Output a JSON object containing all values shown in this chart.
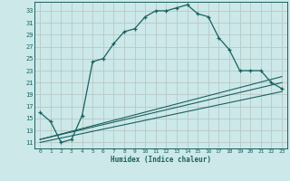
{
  "title": "",
  "xlabel": "Humidex (Indice chaleur)",
  "bg_color": "#cce8e8",
  "grid_color": "#b8c8c8",
  "line_color": "#1a6060",
  "xlim": [
    -0.5,
    23.5
  ],
  "ylim": [
    10,
    34.5
  ],
  "yticks": [
    11,
    13,
    15,
    17,
    19,
    21,
    23,
    25,
    27,
    29,
    31,
    33
  ],
  "xticks": [
    0,
    1,
    2,
    3,
    4,
    5,
    6,
    7,
    8,
    9,
    10,
    11,
    12,
    13,
    14,
    15,
    16,
    17,
    18,
    19,
    20,
    21,
    22,
    23
  ],
  "main_x": [
    0,
    1,
    2,
    3,
    4,
    5,
    6,
    7,
    8,
    9,
    10,
    11,
    12,
    13,
    14,
    15,
    16,
    17,
    18,
    19,
    20,
    21,
    22,
    23
  ],
  "main_y": [
    16.0,
    14.5,
    11.0,
    11.5,
    15.5,
    24.5,
    25.0,
    27.5,
    29.5,
    30.0,
    32.0,
    33.0,
    33.0,
    33.5,
    34.0,
    32.5,
    32.0,
    28.5,
    26.5,
    23.0,
    23.0,
    23.0,
    21.0,
    20.0
  ],
  "line1_x": [
    0,
    23
  ],
  "line1_y": [
    11.5,
    22.0
  ],
  "line2_x": [
    0,
    23
  ],
  "line2_y": [
    11.5,
    21.0
  ],
  "line3_x": [
    0,
    23
  ],
  "line3_y": [
    11.0,
    19.5
  ]
}
